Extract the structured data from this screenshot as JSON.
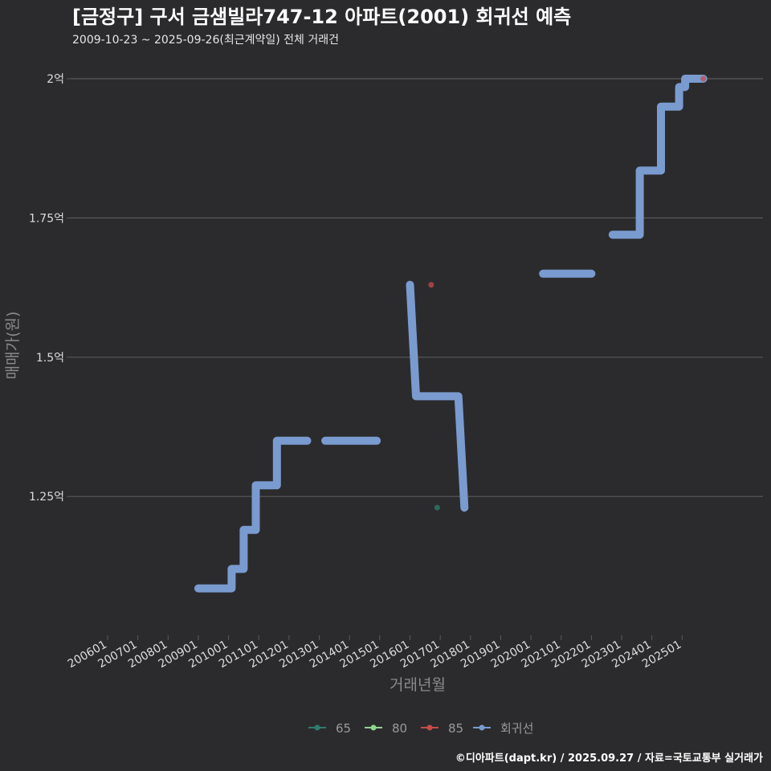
{
  "title": "[금정구] 구서 금샘빌라747-12 아파트(2001) 회귀선 예측",
  "subtitle": "2009-10-23 ~ 2025-09-26(최근계약일) 전체 거래건",
  "footer": "©디아파트(dapt.kr) / 2025.09.27 / 자료=국토교통부 실거래가",
  "colors": {
    "background": "#2b2b2d",
    "grid": "#5a5a5c",
    "regression": "#7a9bcf",
    "s65": "#2e7d6e",
    "s80": "#8fd48f",
    "s85": "#c94a4a"
  },
  "chart_data": {
    "type": "line",
    "xlabel": "거래년월",
    "ylabel": "매매가(원)",
    "ylim": [
      1.0,
      2.03
    ],
    "x_ticks": [
      "200601",
      "200701",
      "200801",
      "200901",
      "201001",
      "201101",
      "201201",
      "201301",
      "201401",
      "201501",
      "201601",
      "201701",
      "201801",
      "201901",
      "202001",
      "202101",
      "202201",
      "202301",
      "202401",
      "202501"
    ],
    "y_ticks": [
      {
        "value": 1.25,
        "label": "1.25억"
      },
      {
        "value": 1.5,
        "label": "1.5억"
      },
      {
        "value": 1.75,
        "label": "1.75억"
      },
      {
        "value": 2.0,
        "label": "2억"
      }
    ],
    "grid": true,
    "legend_position": "bottom",
    "legend": [
      {
        "name": "65",
        "color_key": "s65"
      },
      {
        "name": "80",
        "color_key": "s80"
      },
      {
        "name": "85",
        "color_key": "s85"
      },
      {
        "name": "회귀선",
        "color_key": "regression"
      }
    ],
    "regression_segments": [
      [
        [
          2009.0,
          1.085
        ],
        [
          2010.1,
          1.085
        ],
        [
          2010.1,
          1.12
        ],
        [
          2010.5,
          1.12
        ],
        [
          2010.5,
          1.19
        ],
        [
          2010.9,
          1.19
        ],
        [
          2010.9,
          1.27
        ],
        [
          2011.6,
          1.27
        ],
        [
          2011.6,
          1.35
        ],
        [
          2012.6,
          1.35
        ]
      ],
      [
        [
          2013.2,
          1.35
        ],
        [
          2014.9,
          1.35
        ]
      ],
      [
        [
          2016.0,
          1.63
        ],
        [
          2016.2,
          1.43
        ],
        [
          2017.6,
          1.43
        ],
        [
          2017.8,
          1.23
        ]
      ],
      [
        [
          2020.4,
          1.65
        ],
        [
          2022.0,
          1.65
        ]
      ],
      [
        [
          2022.7,
          1.72
        ],
        [
          2023.6,
          1.72
        ],
        [
          2023.6,
          1.835
        ],
        [
          2024.3,
          1.835
        ],
        [
          2024.3,
          1.95
        ],
        [
          2024.9,
          1.95
        ],
        [
          2024.9,
          1.985
        ],
        [
          2025.1,
          1.985
        ],
        [
          2025.1,
          2.0
        ],
        [
          2025.7,
          2.0
        ]
      ]
    ],
    "points": [
      {
        "series": "85",
        "x": 2016.7,
        "y": 1.63
      },
      {
        "series": "65",
        "x": 2016.9,
        "y": 1.23
      },
      {
        "series": "85",
        "x": 2025.7,
        "y": 2.0
      }
    ]
  }
}
